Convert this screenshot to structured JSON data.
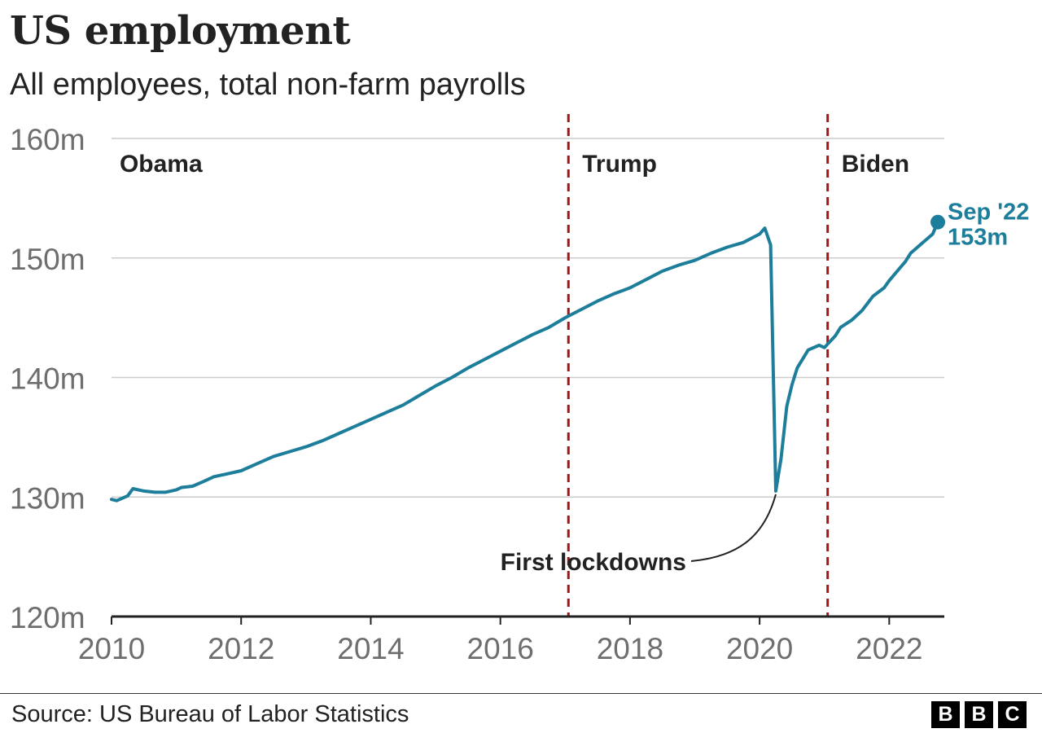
{
  "header": {
    "title": "US employment",
    "subtitle": "All employees, total non-farm payrolls"
  },
  "footer": {
    "source": "Source: US Bureau of Labor Statistics",
    "brand_letters": [
      "B",
      "B",
      "C"
    ]
  },
  "colors": {
    "line": "#1c7e9b",
    "divider": "#a31515",
    "grid": "#cccccc",
    "axis": "#222222",
    "tick_text": "#6e6e6e"
  },
  "chart_data": {
    "type": "line",
    "title": "US employment",
    "subtitle": "All employees, total non-farm payrolls",
    "xlabel": "",
    "ylabel": "",
    "xlim": [
      2010.0,
      2022.85
    ],
    "ylim": [
      120,
      160
    ],
    "x_ticks": [
      2010,
      2012,
      2014,
      2016,
      2018,
      2020,
      2022
    ],
    "x_tick_labels": [
      "2010",
      "2012",
      "2014",
      "2016",
      "2018",
      "2020",
      "2022"
    ],
    "y_ticks": [
      120,
      130,
      140,
      150,
      160
    ],
    "y_tick_labels": [
      "120m",
      "130m",
      "140m",
      "150m",
      "160m"
    ],
    "grid": true,
    "series": [
      {
        "name": "",
        "points": [
          [
            2010.0,
            129.8
          ],
          [
            2010.08,
            129.7
          ],
          [
            2010.25,
            130.1
          ],
          [
            2010.33,
            130.7
          ],
          [
            2010.5,
            130.5
          ],
          [
            2010.67,
            130.4
          ],
          [
            2010.83,
            130.4
          ],
          [
            2011.0,
            130.6
          ],
          [
            2011.08,
            130.8
          ],
          [
            2011.25,
            130.9
          ],
          [
            2011.42,
            131.3
          ],
          [
            2011.58,
            131.7
          ],
          [
            2011.75,
            131.9
          ],
          [
            2012.0,
            132.2
          ],
          [
            2012.25,
            132.8
          ],
          [
            2012.5,
            133.4
          ],
          [
            2012.75,
            133.8
          ],
          [
            2013.0,
            134.2
          ],
          [
            2013.25,
            134.7
          ],
          [
            2013.5,
            135.3
          ],
          [
            2013.75,
            135.9
          ],
          [
            2014.0,
            136.5
          ],
          [
            2014.25,
            137.1
          ],
          [
            2014.5,
            137.7
          ],
          [
            2014.75,
            138.5
          ],
          [
            2015.0,
            139.3
          ],
          [
            2015.25,
            140.0
          ],
          [
            2015.5,
            140.8
          ],
          [
            2015.75,
            141.5
          ],
          [
            2016.0,
            142.2
          ],
          [
            2016.25,
            142.9
          ],
          [
            2016.5,
            143.6
          ],
          [
            2016.75,
            144.2
          ],
          [
            2017.0,
            145.0
          ],
          [
            2017.25,
            145.7
          ],
          [
            2017.5,
            146.4
          ],
          [
            2017.75,
            147.0
          ],
          [
            2018.0,
            147.5
          ],
          [
            2018.25,
            148.2
          ],
          [
            2018.5,
            148.9
          ],
          [
            2018.75,
            149.4
          ],
          [
            2019.0,
            149.8
          ],
          [
            2019.25,
            150.4
          ],
          [
            2019.5,
            150.9
          ],
          [
            2019.75,
            151.3
          ],
          [
            2020.0,
            152.0
          ],
          [
            2020.08,
            152.5
          ],
          [
            2020.17,
            151.1
          ],
          [
            2020.25,
            130.5
          ],
          [
            2020.33,
            133.2
          ],
          [
            2020.42,
            137.6
          ],
          [
            2020.5,
            139.4
          ],
          [
            2020.58,
            140.8
          ],
          [
            2020.75,
            142.3
          ],
          [
            2020.92,
            142.7
          ],
          [
            2021.0,
            142.5
          ],
          [
            2021.17,
            143.5
          ],
          [
            2021.25,
            144.2
          ],
          [
            2021.42,
            144.8
          ],
          [
            2021.58,
            145.6
          ],
          [
            2021.75,
            146.8
          ],
          [
            2021.92,
            147.5
          ],
          [
            2022.0,
            148.1
          ],
          [
            2022.17,
            149.2
          ],
          [
            2022.25,
            149.7
          ],
          [
            2022.33,
            150.4
          ],
          [
            2022.5,
            151.2
          ],
          [
            2022.67,
            152.0
          ],
          [
            2022.75,
            153.0
          ]
        ]
      }
    ],
    "dividers": [
      {
        "x": 2017.05,
        "label": "Trump"
      },
      {
        "x": 2021.05,
        "label": "Biden"
      }
    ],
    "region_labels": [
      {
        "label": "Obama",
        "x": 2010.1
      }
    ],
    "annotations": {
      "end_point": {
        "x": 2022.75,
        "y": 153.0,
        "line1": "Sep '22",
        "line2": "153m"
      },
      "lockdown": {
        "x": 2020.25,
        "y": 130.5,
        "label": "First lockdowns"
      }
    }
  }
}
